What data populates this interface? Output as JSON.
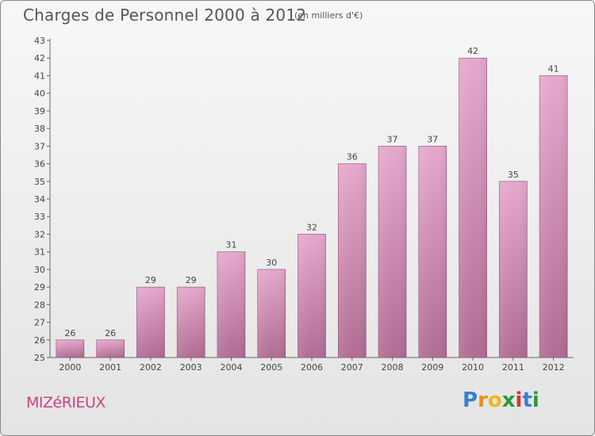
{
  "header": {
    "title": "Charges de Personnel 2000 à 2012",
    "subtitle": "(en milliers d'€)"
  },
  "footer": {
    "commune": "MIZéRIEUX",
    "logo_text": "Proxiti",
    "logo_colors": [
      "#3a7fd1",
      "#e8901f",
      "#f1b51d",
      "#2a9a3a",
      "#e03030",
      "#3a7fd1",
      "#2a9a3a"
    ]
  },
  "chart_data": {
    "type": "bar",
    "title": "Charges de Personnel 2000 à 2012",
    "subtitle": "(en milliers d'€)",
    "categories": [
      "2000",
      "2001",
      "2002",
      "2003",
      "2004",
      "2005",
      "2006",
      "2007",
      "2008",
      "2009",
      "2010",
      "2011",
      "2012"
    ],
    "values": [
      26,
      26,
      29,
      29,
      31,
      30,
      32,
      36,
      37,
      37,
      42,
      35,
      41
    ],
    "ylim": [
      25,
      43
    ],
    "yticks": [
      25,
      26,
      27,
      28,
      29,
      30,
      31,
      32,
      33,
      34,
      35,
      36,
      37,
      38,
      39,
      40,
      41,
      42,
      43
    ],
    "grid": false,
    "xlabel": "",
    "ylabel": "",
    "bar_color_top": "#e6a8cd",
    "bar_color_bottom": "#b06c94"
  }
}
